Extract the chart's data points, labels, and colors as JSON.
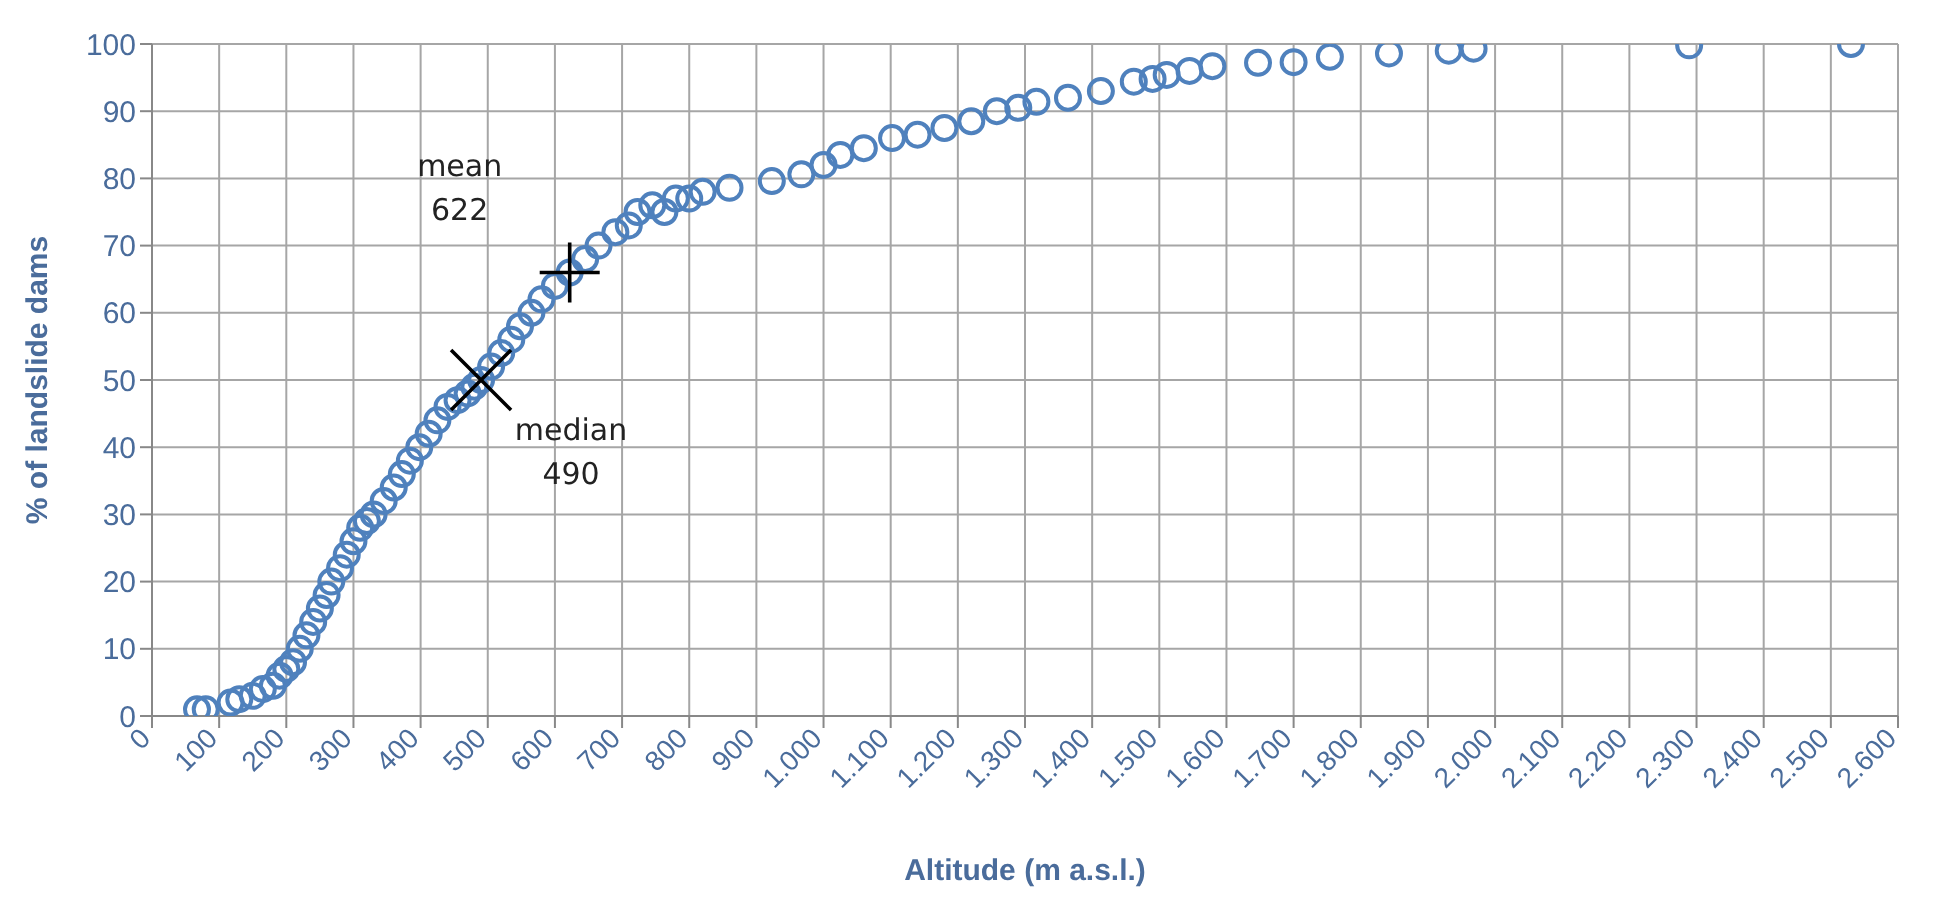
{
  "chart_data": {
    "type": "scatter",
    "xlabel": "Altitude (m a.s.l.)",
    "ylabel": "% of landslide dams",
    "xlim": [
      0,
      2600
    ],
    "xticks": [
      0,
      100,
      200,
      300,
      400,
      500,
      600,
      700,
      800,
      900,
      {
        "value": 1000,
        "label": "1.000"
      },
      {
        "value": 1100,
        "label": "1.100"
      },
      {
        "value": 1200,
        "label": "1.200"
      },
      {
        "value": 1300,
        "label": "1.300"
      },
      {
        "value": 1400,
        "label": "1.400"
      },
      {
        "value": 1500,
        "label": "1.500"
      },
      {
        "value": 1600,
        "label": "1.600"
      },
      {
        "value": 1700,
        "label": "1.700"
      },
      {
        "value": 1800,
        "label": "1.800"
      },
      {
        "value": 1900,
        "label": "1.900"
      },
      {
        "value": 2000,
        "label": "2.000"
      },
      {
        "value": 2100,
        "label": "2.100"
      },
      {
        "value": 2200,
        "label": "2.200"
      },
      {
        "value": 2300,
        "label": "2.300"
      },
      {
        "value": 2400,
        "label": "2.400"
      },
      {
        "value": 2500,
        "label": "2.500"
      },
      {
        "value": 2600,
        "label": "2.600"
      }
    ],
    "ylim": [
      0,
      100
    ],
    "yticks": [
      0,
      10,
      20,
      30,
      40,
      50,
      60,
      70,
      80,
      90,
      100
    ],
    "grid": true,
    "legend": false,
    "series": [
      {
        "color": "#4f81bd",
        "marker": "circle",
        "x": [
          67,
          80,
          117,
          130,
          150,
          165,
          180,
          190,
          200,
          210,
          220,
          230,
          240,
          250,
          260,
          267,
          280,
          290,
          300,
          310,
          320,
          330,
          345,
          360,
          372,
          384,
          398,
          412,
          425,
          440,
          455,
          470,
          480,
          490,
          505,
          520,
          535,
          548,
          565,
          580,
          600,
          622,
          645,
          665,
          690,
          710,
          723,
          745,
          763,
          780,
          800,
          820,
          860,
          923,
          967,
          1000,
          1025,
          1060,
          1102,
          1140,
          1180,
          1220,
          1258,
          1290,
          1317,
          1364,
          1413,
          1462,
          1490,
          1511,
          1545,
          1579,
          1647,
          1700,
          1754,
          1842,
          1931,
          1968,
          2289,
          2530
        ],
        "values": [
          1,
          1,
          2,
          2.5,
          3,
          4,
          4.5,
          6,
          7,
          8,
          10,
          12,
          14,
          16,
          18,
          20,
          22,
          24,
          26,
          28,
          29,
          30,
          32,
          34,
          36,
          38,
          40,
          42,
          44,
          46,
          47,
          48,
          49,
          50,
          52,
          54,
          56,
          58,
          60,
          62,
          64,
          66,
          68,
          70,
          72,
          73,
          75,
          76,
          75,
          77,
          77,
          78,
          78.6,
          79.6,
          80.6,
          82,
          83.5,
          84.5,
          86,
          86.5,
          87.5,
          88.5,
          90,
          90.5,
          91.4,
          92,
          93,
          94.4,
          94.8,
          95.4,
          96,
          96.7,
          97.2,
          97.3,
          98.1,
          98.6,
          99,
          99.3,
          99.8,
          100
        ]
      },
      {
        "color": "#000000",
        "marker": "cross",
        "x": [
          622
        ],
        "values": [
          66
        ]
      },
      {
        "color": "#000000",
        "marker": "cross",
        "x": [
          490
        ],
        "values": [
          50
        ]
      }
    ],
    "annotations": [
      {
        "text": "mean 622",
        "x": 622,
        "y": 66
      },
      {
        "text": "median 490",
        "x": 490,
        "y": 50
      }
    ]
  }
}
